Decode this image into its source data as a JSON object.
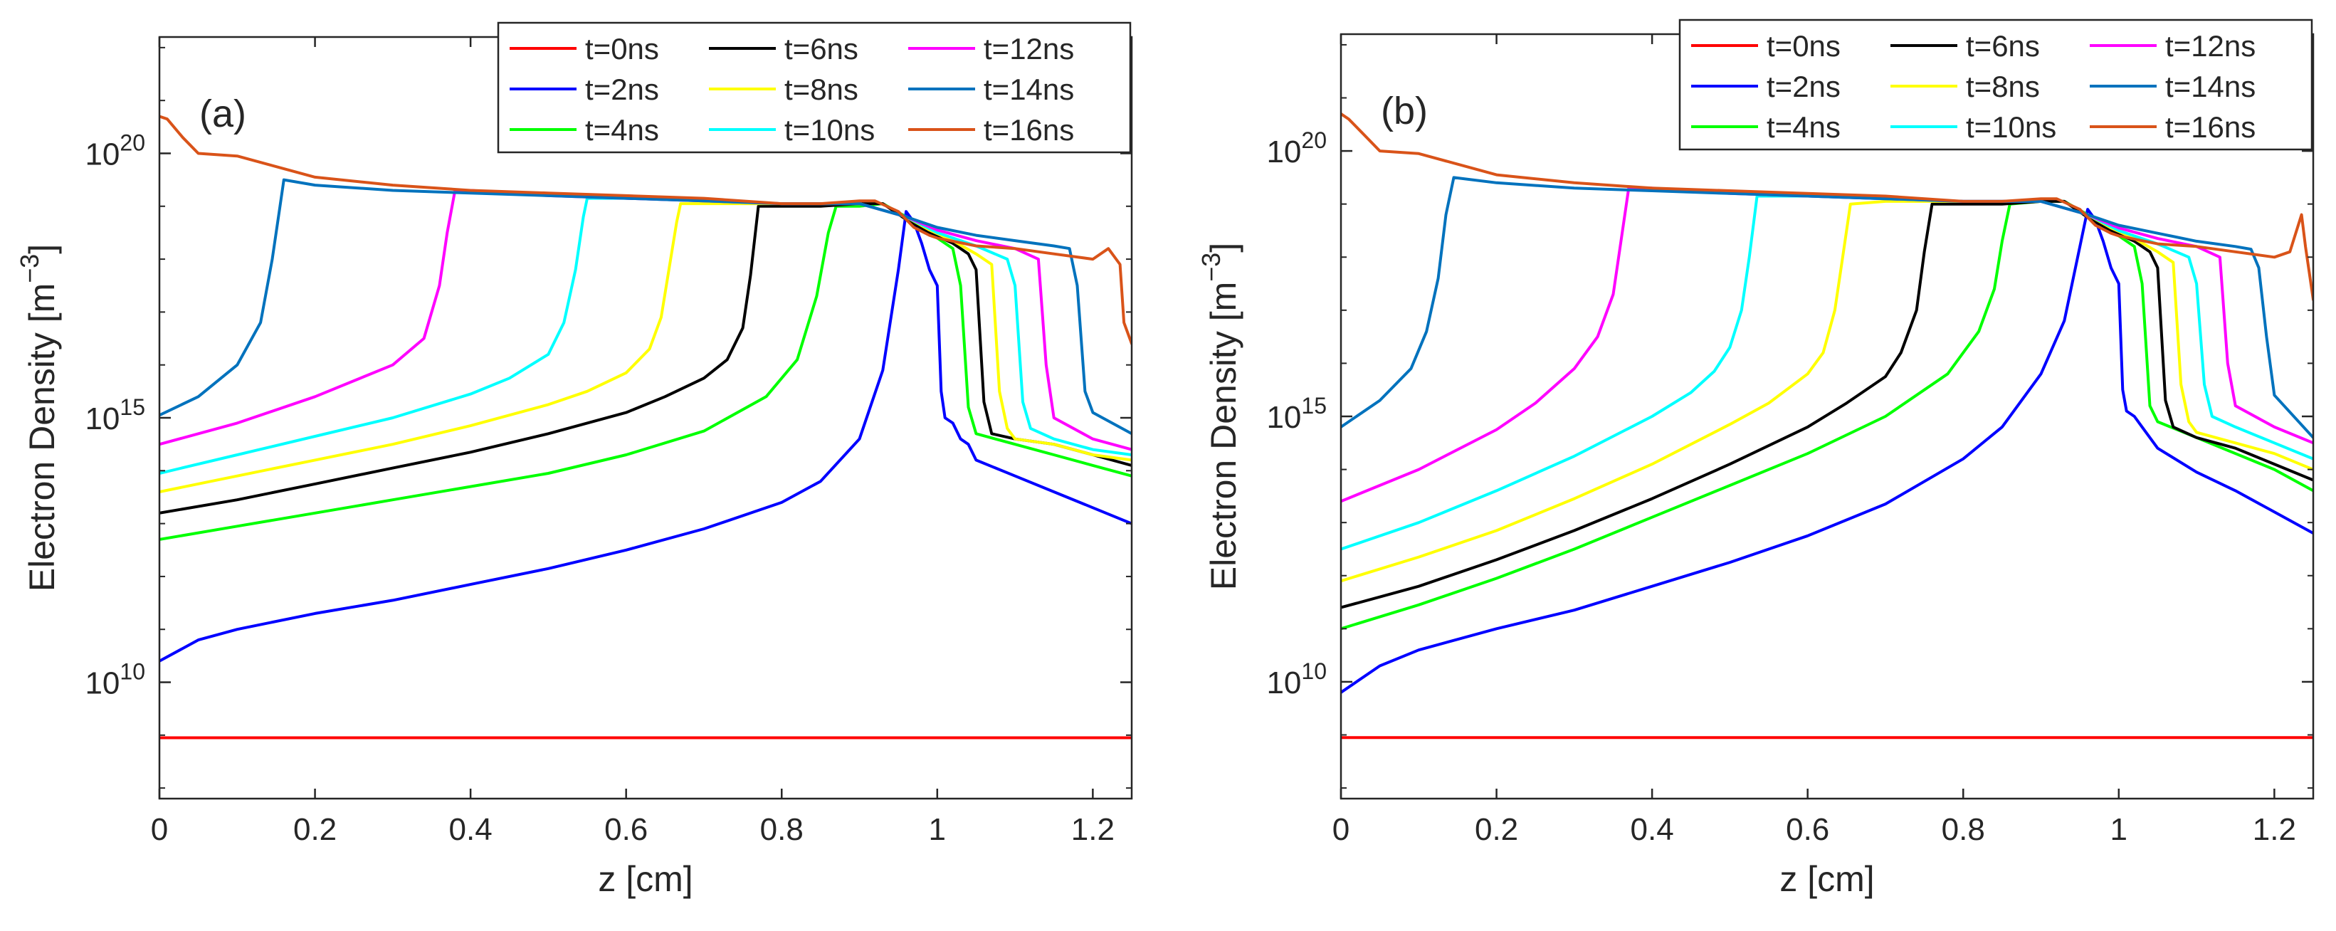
{
  "chart_data": [
    {
      "type": "line",
      "panel_label": "(a)",
      "xlabel": "z [cm]",
      "ylabel": "Electron Density [m",
      "ylabel_unit_exp": "−3",
      "ylabel_close": "]",
      "xlim": [
        0,
        1.25
      ],
      "ylim_log10": [
        7.8,
        22.2
      ],
      "yscale": "log",
      "xticks": [
        "0",
        "0.2",
        "0.4",
        "0.6",
        "0.8",
        "1",
        "1.2"
      ],
      "xtick_values": [
        0,
        0.2,
        0.4,
        0.6,
        0.8,
        1.0,
        1.2
      ],
      "yticks": [
        {
          "base": "10",
          "exp": "10",
          "log10": 10
        },
        {
          "base": "10",
          "exp": "15",
          "log10": 15
        },
        {
          "base": "10",
          "exp": "20",
          "log10": 20
        }
      ],
      "legend_position": "top-right",
      "series": [
        {
          "name": "t=0ns",
          "color": "#ff0000",
          "x": [
            0,
            1.25
          ],
          "log10": [
            8.95,
            8.95
          ]
        },
        {
          "name": "t=2ns",
          "color": "#0000ff",
          "x": [
            0,
            0.05,
            0.1,
            0.2,
            0.3,
            0.4,
            0.5,
            0.6,
            0.7,
            0.8,
            0.85,
            0.9,
            0.93,
            0.95,
            0.96,
            0.97,
            0.98,
            0.99,
            1.0,
            1.005,
            1.01,
            1.02,
            1.03,
            1.04,
            1.05,
            1.1,
            1.15,
            1.2,
            1.25
          ],
          "log10": [
            10.4,
            10.8,
            11.0,
            11.3,
            11.55,
            11.85,
            12.15,
            12.5,
            12.9,
            13.4,
            13.8,
            14.6,
            15.9,
            17.8,
            18.9,
            18.7,
            18.3,
            17.8,
            17.5,
            15.5,
            15.0,
            14.9,
            14.6,
            14.5,
            14.2,
            13.9,
            13.6,
            13.3,
            13.0
          ]
        },
        {
          "name": "t=4ns",
          "color": "#00ff00",
          "x": [
            0,
            0.1,
            0.2,
            0.3,
            0.4,
            0.5,
            0.6,
            0.7,
            0.78,
            0.82,
            0.845,
            0.86,
            0.87,
            0.9,
            0.93,
            0.96,
            0.99,
            1.0,
            1.02,
            1.03,
            1.04,
            1.05,
            1.1,
            1.15,
            1.2,
            1.25
          ],
          "log10": [
            12.7,
            12.95,
            13.2,
            13.45,
            13.7,
            13.95,
            14.3,
            14.75,
            15.4,
            16.1,
            17.3,
            18.5,
            19.0,
            19.0,
            19.05,
            18.8,
            18.5,
            18.4,
            18.2,
            17.5,
            15.2,
            14.7,
            14.5,
            14.3,
            14.1,
            13.9
          ]
        },
        {
          "name": "t=6ns",
          "color": "#000000",
          "x": [
            0,
            0.1,
            0.2,
            0.3,
            0.4,
            0.5,
            0.6,
            0.65,
            0.7,
            0.73,
            0.75,
            0.76,
            0.77,
            0.8,
            0.85,
            0.9,
            0.93,
            0.96,
            0.99,
            1.02,
            1.04,
            1.05,
            1.06,
            1.07,
            1.1,
            1.15,
            1.2,
            1.25
          ],
          "log10": [
            13.2,
            13.45,
            13.75,
            14.05,
            14.35,
            14.7,
            15.1,
            15.4,
            15.75,
            16.1,
            16.7,
            17.7,
            19.0,
            19.0,
            19.0,
            19.05,
            19.05,
            18.75,
            18.5,
            18.3,
            18.1,
            17.8,
            15.3,
            14.7,
            14.6,
            14.5,
            14.3,
            14.1
          ]
        },
        {
          "name": "t=8ns",
          "color": "#ffff00",
          "x": [
            0,
            0.1,
            0.2,
            0.3,
            0.4,
            0.5,
            0.55,
            0.6,
            0.63,
            0.645,
            0.655,
            0.665,
            0.67,
            0.7,
            0.8,
            0.9,
            0.96,
            0.99,
            1.02,
            1.05,
            1.07,
            1.08,
            1.09,
            1.1,
            1.15,
            1.2,
            1.25
          ],
          "log10": [
            13.6,
            13.9,
            14.2,
            14.5,
            14.85,
            15.25,
            15.5,
            15.85,
            16.3,
            16.9,
            17.8,
            18.7,
            19.05,
            19.05,
            19.05,
            19.05,
            18.8,
            18.55,
            18.35,
            18.1,
            17.9,
            15.5,
            14.8,
            14.6,
            14.5,
            14.3,
            14.2
          ]
        },
        {
          "name": "t=10ns",
          "color": "#00ffff",
          "x": [
            0,
            0.1,
            0.2,
            0.3,
            0.4,
            0.45,
            0.5,
            0.52,
            0.535,
            0.545,
            0.55,
            0.6,
            0.7,
            0.8,
            0.9,
            0.96,
            1.0,
            1.05,
            1.09,
            1.1,
            1.11,
            1.12,
            1.15,
            1.2,
            1.25
          ],
          "log10": [
            13.95,
            14.3,
            14.65,
            15.0,
            15.45,
            15.75,
            16.2,
            16.8,
            17.8,
            18.8,
            19.15,
            19.15,
            19.1,
            19.05,
            19.05,
            18.8,
            18.5,
            18.25,
            18.0,
            17.5,
            15.3,
            14.8,
            14.6,
            14.4,
            14.3
          ]
        },
        {
          "name": "t=12ns",
          "color": "#ff00ff",
          "x": [
            0,
            0.1,
            0.2,
            0.3,
            0.34,
            0.36,
            0.37,
            0.38,
            0.4,
            0.5,
            0.6,
            0.7,
            0.8,
            0.9,
            0.96,
            1.0,
            1.05,
            1.1,
            1.13,
            1.14,
            1.15,
            1.2,
            1.25
          ],
          "log10": [
            14.5,
            14.9,
            15.4,
            16.0,
            16.5,
            17.5,
            18.5,
            19.3,
            19.3,
            19.2,
            19.15,
            19.1,
            19.05,
            19.05,
            18.8,
            18.55,
            18.35,
            18.2,
            18.0,
            16.0,
            15.0,
            14.6,
            14.4
          ]
        },
        {
          "name": "t=14ns",
          "color": "#0072bd",
          "x": [
            0,
            0.05,
            0.1,
            0.13,
            0.145,
            0.155,
            0.16,
            0.2,
            0.3,
            0.4,
            0.5,
            0.6,
            0.7,
            0.8,
            0.9,
            0.96,
            1.0,
            1.05,
            1.1,
            1.15,
            1.17,
            1.18,
            1.19,
            1.2,
            1.25
          ],
          "log10": [
            15.05,
            15.4,
            16.0,
            16.8,
            18.0,
            19.0,
            19.5,
            19.4,
            19.3,
            19.25,
            19.2,
            19.15,
            19.1,
            19.05,
            19.05,
            18.8,
            18.6,
            18.45,
            18.35,
            18.25,
            18.2,
            17.5,
            15.5,
            15.1,
            14.7
          ]
        },
        {
          "name": "t=16ns",
          "color": "#d95319",
          "x": [
            0,
            0.01,
            0.03,
            0.05,
            0.1,
            0.2,
            0.3,
            0.4,
            0.5,
            0.6,
            0.7,
            0.8,
            0.85,
            0.9,
            0.92,
            0.95,
            0.97,
            0.99,
            1.0,
            1.05,
            1.1,
            1.15,
            1.2,
            1.22,
            1.235,
            1.24,
            1.25
          ],
          "log10": [
            20.7,
            20.65,
            20.3,
            20.0,
            19.95,
            19.55,
            19.4,
            19.3,
            19.25,
            19.2,
            19.15,
            19.05,
            19.05,
            19.1,
            19.1,
            18.9,
            18.6,
            18.45,
            18.4,
            18.25,
            18.2,
            18.1,
            18.0,
            18.2,
            17.9,
            16.8,
            16.4
          ]
        }
      ]
    },
    {
      "type": "line",
      "panel_label": "(b)",
      "xlabel": "z [cm]",
      "ylabel": "Electron Density [m",
      "ylabel_unit_exp": "−3",
      "ylabel_close": "]",
      "xlim": [
        0,
        1.25
      ],
      "ylim_log10": [
        7.8,
        22.2
      ],
      "yscale": "log",
      "xticks": [
        "0",
        "0.2",
        "0.4",
        "0.6",
        "0.8",
        "1",
        "1.2"
      ],
      "xtick_values": [
        0,
        0.2,
        0.4,
        0.6,
        0.8,
        1.0,
        1.2
      ],
      "yticks": [
        {
          "base": "10",
          "exp": "10",
          "log10": 10
        },
        {
          "base": "10",
          "exp": "15",
          "log10": 15
        },
        {
          "base": "10",
          "exp": "20",
          "log10": 20
        }
      ],
      "legend_position": "top-right",
      "series": [
        {
          "name": "t=0ns",
          "color": "#ff0000",
          "x": [
            0,
            1.25
          ],
          "log10": [
            8.95,
            8.95
          ]
        },
        {
          "name": "t=2ns",
          "color": "#0000ff",
          "x": [
            0,
            0.05,
            0.1,
            0.2,
            0.3,
            0.4,
            0.5,
            0.6,
            0.7,
            0.8,
            0.85,
            0.9,
            0.93,
            0.95,
            0.96,
            0.97,
            0.98,
            0.99,
            1.0,
            1.005,
            1.01,
            1.02,
            1.03,
            1.04,
            1.05,
            1.1,
            1.15,
            1.2,
            1.25
          ],
          "log10": [
            9.8,
            10.3,
            10.6,
            11.0,
            11.35,
            11.8,
            12.25,
            12.75,
            13.35,
            14.2,
            14.8,
            15.8,
            16.8,
            18.2,
            18.9,
            18.7,
            18.3,
            17.8,
            17.5,
            15.5,
            15.1,
            15.0,
            14.8,
            14.6,
            14.4,
            13.95,
            13.6,
            13.2,
            12.8
          ]
        },
        {
          "name": "t=4ns",
          "color": "#00ff00",
          "x": [
            0,
            0.1,
            0.2,
            0.3,
            0.4,
            0.5,
            0.6,
            0.7,
            0.78,
            0.82,
            0.84,
            0.85,
            0.86,
            0.9,
            0.93,
            0.96,
            0.99,
            1.0,
            1.02,
            1.03,
            1.04,
            1.05,
            1.1,
            1.15,
            1.2,
            1.25
          ],
          "log10": [
            11.0,
            11.45,
            11.95,
            12.5,
            13.1,
            13.7,
            14.3,
            15.0,
            15.8,
            16.6,
            17.4,
            18.3,
            19.0,
            19.05,
            19.05,
            18.8,
            18.5,
            18.4,
            18.2,
            17.5,
            15.2,
            14.9,
            14.6,
            14.3,
            14.0,
            13.6
          ]
        },
        {
          "name": "t=6ns",
          "color": "#000000",
          "x": [
            0,
            0.1,
            0.2,
            0.3,
            0.4,
            0.5,
            0.6,
            0.65,
            0.7,
            0.72,
            0.74,
            0.75,
            0.76,
            0.8,
            0.85,
            0.9,
            0.93,
            0.96,
            0.99,
            1.02,
            1.04,
            1.05,
            1.06,
            1.07,
            1.1,
            1.15,
            1.2,
            1.25
          ],
          "log10": [
            11.4,
            11.8,
            12.3,
            12.85,
            13.45,
            14.1,
            14.8,
            15.25,
            15.75,
            16.2,
            17.0,
            18.1,
            19.0,
            19.0,
            19.0,
            19.05,
            19.05,
            18.75,
            18.5,
            18.3,
            18.1,
            17.8,
            15.3,
            14.8,
            14.6,
            14.4,
            14.1,
            13.8
          ]
        },
        {
          "name": "t=8ns",
          "color": "#ffff00",
          "x": [
            0,
            0.1,
            0.2,
            0.3,
            0.4,
            0.5,
            0.55,
            0.6,
            0.62,
            0.635,
            0.645,
            0.655,
            0.7,
            0.8,
            0.9,
            0.96,
            0.99,
            1.02,
            1.05,
            1.07,
            1.08,
            1.09,
            1.1,
            1.15,
            1.2,
            1.25
          ],
          "log10": [
            11.9,
            12.35,
            12.85,
            13.45,
            14.1,
            14.85,
            15.25,
            15.8,
            16.2,
            17.0,
            18.0,
            19.0,
            19.05,
            19.05,
            19.05,
            18.8,
            18.55,
            18.35,
            18.1,
            17.9,
            15.6,
            14.9,
            14.7,
            14.5,
            14.3,
            14.0
          ]
        },
        {
          "name": "t=10ns",
          "color": "#00ffff",
          "x": [
            0,
            0.1,
            0.2,
            0.3,
            0.4,
            0.45,
            0.48,
            0.5,
            0.515,
            0.525,
            0.535,
            0.6,
            0.7,
            0.8,
            0.9,
            0.96,
            1.0,
            1.05,
            1.09,
            1.1,
            1.11,
            1.12,
            1.15,
            1.2,
            1.25
          ],
          "log10": [
            12.5,
            13.0,
            13.6,
            14.25,
            15.0,
            15.45,
            15.85,
            16.3,
            17.0,
            18.0,
            19.15,
            19.15,
            19.1,
            19.05,
            19.05,
            18.8,
            18.5,
            18.25,
            18.0,
            17.5,
            15.6,
            15.0,
            14.8,
            14.5,
            14.2
          ]
        },
        {
          "name": "t=12ns",
          "color": "#ff00ff",
          "x": [
            0,
            0.1,
            0.2,
            0.25,
            0.3,
            0.33,
            0.35,
            0.36,
            0.37,
            0.4,
            0.5,
            0.6,
            0.7,
            0.8,
            0.9,
            0.96,
            1.0,
            1.05,
            1.1,
            1.13,
            1.14,
            1.15,
            1.2,
            1.25
          ],
          "log10": [
            13.4,
            14.0,
            14.75,
            15.25,
            15.9,
            16.5,
            17.3,
            18.3,
            19.3,
            19.3,
            19.2,
            19.15,
            19.1,
            19.05,
            19.05,
            18.8,
            18.55,
            18.35,
            18.2,
            18.0,
            16.0,
            15.2,
            14.8,
            14.5
          ]
        },
        {
          "name": "t=14ns",
          "color": "#0072bd",
          "x": [
            0,
            0.05,
            0.09,
            0.11,
            0.125,
            0.135,
            0.145,
            0.2,
            0.3,
            0.4,
            0.5,
            0.6,
            0.7,
            0.8,
            0.9,
            0.96,
            1.0,
            1.05,
            1.1,
            1.15,
            1.17,
            1.18,
            1.19,
            1.2,
            1.25
          ],
          "log10": [
            14.8,
            15.3,
            15.9,
            16.6,
            17.6,
            18.8,
            19.5,
            19.4,
            19.3,
            19.25,
            19.2,
            19.15,
            19.1,
            19.05,
            19.05,
            18.8,
            18.6,
            18.45,
            18.3,
            18.2,
            18.15,
            17.8,
            16.5,
            15.4,
            14.6
          ]
        },
        {
          "name": "t=16ns",
          "color": "#d95319",
          "x": [
            0,
            0.01,
            0.03,
            0.05,
            0.1,
            0.2,
            0.3,
            0.4,
            0.5,
            0.6,
            0.7,
            0.8,
            0.85,
            0.9,
            0.92,
            0.95,
            0.97,
            0.99,
            1.0,
            1.05,
            1.1,
            1.15,
            1.2,
            1.22,
            1.235,
            1.24,
            1.25
          ],
          "log10": [
            20.7,
            20.6,
            20.3,
            20.0,
            19.95,
            19.55,
            19.4,
            19.3,
            19.25,
            19.2,
            19.15,
            19.05,
            19.05,
            19.1,
            19.1,
            18.9,
            18.6,
            18.45,
            18.4,
            18.25,
            18.2,
            18.1,
            18.0,
            18.1,
            18.8,
            18.2,
            17.2
          ]
        }
      ]
    }
  ]
}
